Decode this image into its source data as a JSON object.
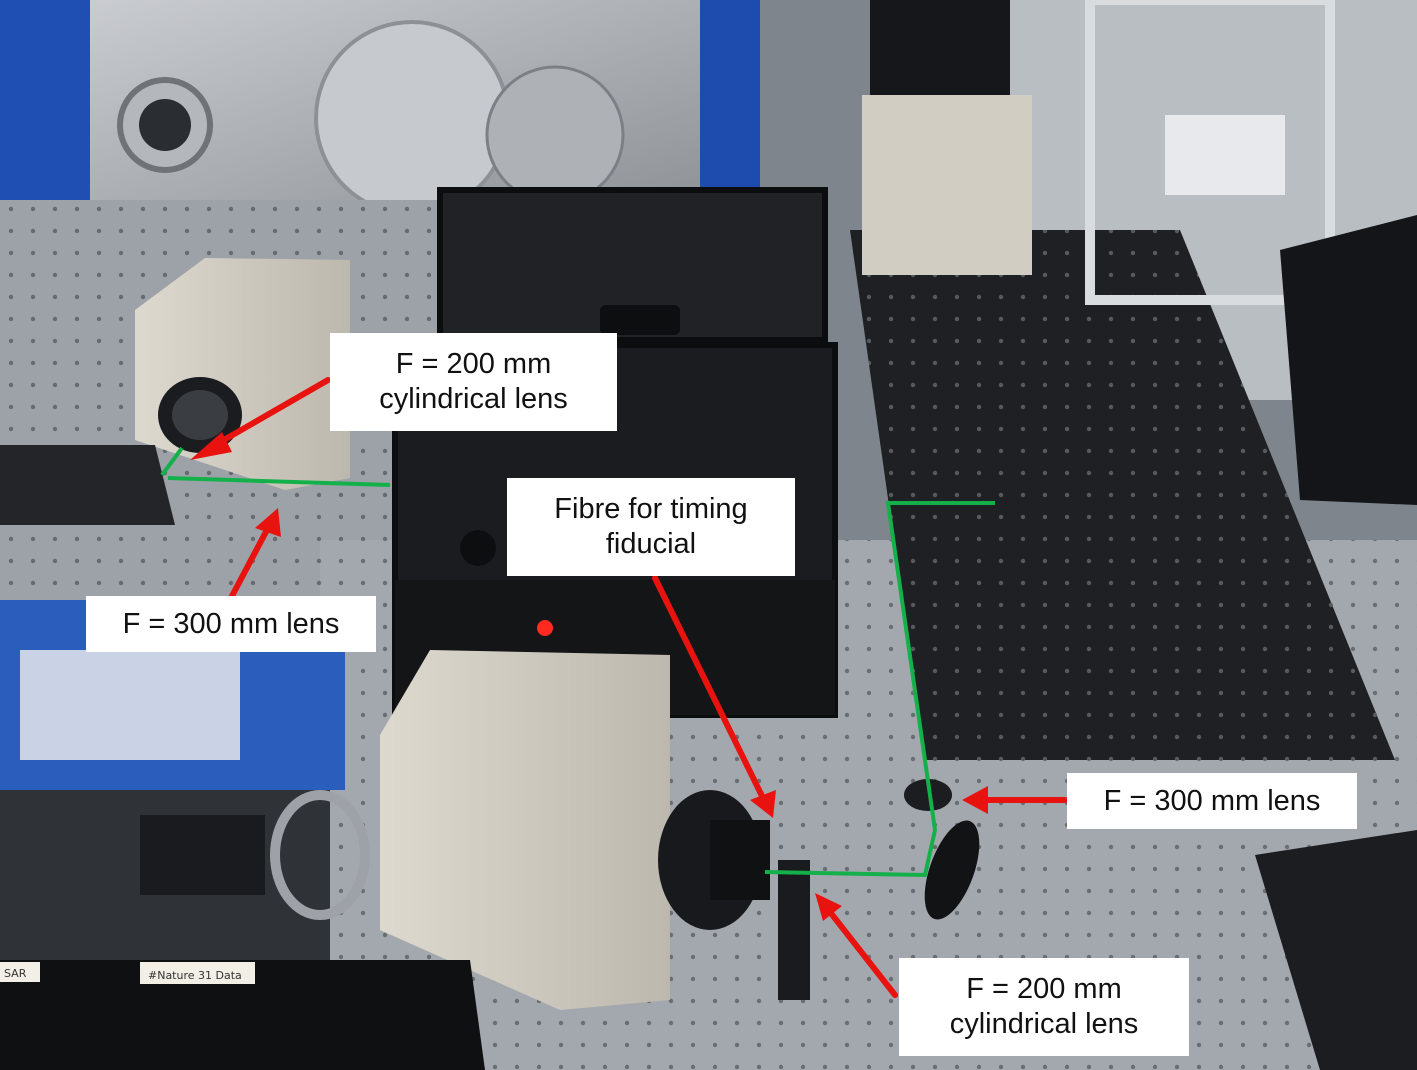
{
  "colors": {
    "arrow": "#e8130f",
    "beam_path": "#14b04a",
    "label_bg": "#ffffff",
    "label_text": "#111111"
  },
  "annotations": {
    "top_left_cyl_lens": {
      "line1": "F = 200 mm",
      "line2": "cylindrical lens"
    },
    "left_lens": {
      "line1": "F = 300 mm lens"
    },
    "fibre": {
      "line1": "Fibre for timing",
      "line2": "fiducial"
    },
    "right_lens": {
      "line1": "F = 300 mm lens"
    },
    "bottom_cyl_lens": {
      "line1": "F = 200 mm",
      "line2": "cylindrical lens"
    }
  },
  "scene": {
    "note_left": "SAR",
    "note_mid": "#Nature 31 Data"
  }
}
